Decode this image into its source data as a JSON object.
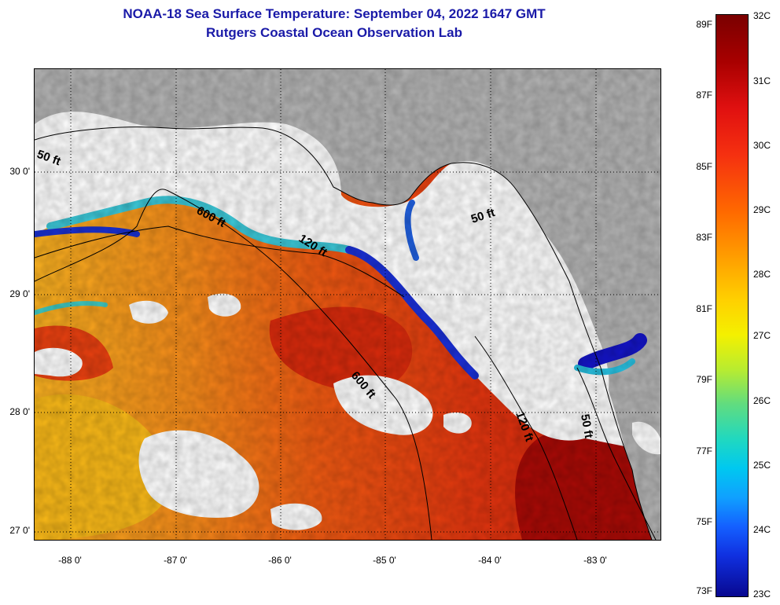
{
  "title": {
    "line1": "NOAA-18 Sea Surface Temperature:  September 04, 2022 1647 GMT",
    "line2": "Rutgers Coastal Ocean Observation Lab"
  },
  "map": {
    "y_labels": [
      "30 0'",
      "29 0'",
      "28 0'",
      "27 0'"
    ],
    "x_labels": [
      "-88 0'",
      "-87 0'",
      "-86 0'",
      "-85 0'",
      "-84 0'",
      "-83 0'"
    ],
    "contour_labels": [
      "50 ft",
      "600 ft",
      "120 ft",
      "50 ft",
      "600 ft",
      "120 ft",
      "50 ft"
    ],
    "colors": {
      "land": "#b3b3b3",
      "cloud": "#ffffff",
      "warm": "#e83a10",
      "hot": "#b00808",
      "cool": "#f5c020",
      "cold": "#1a1ad0"
    }
  },
  "colorbar": {
    "fahrenheit": [
      "89F",
      "87F",
      "85F",
      "83F",
      "81F",
      "79F",
      "77F",
      "75F",
      "73F"
    ],
    "celsius": [
      "32C",
      "31C",
      "30C",
      "29C",
      "28C",
      "27C",
      "26C",
      "25C",
      "24C",
      "23C"
    ]
  }
}
